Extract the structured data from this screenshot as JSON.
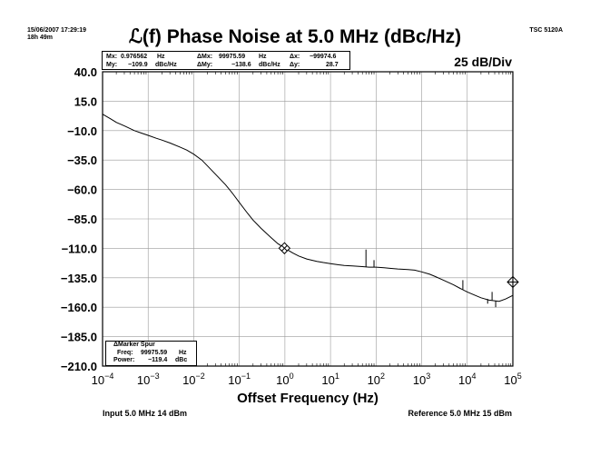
{
  "header": {
    "date": "15/06/2007 17:29:19",
    "elapsed": "18h 49m",
    "instrument": "TSC 5120A"
  },
  "readout": {
    "mx_label": "Mx:",
    "mx_value": "0.976562",
    "mx_unit": "Hz",
    "dmx_label": "ΔMx:",
    "dmx_value": "99975.59",
    "dmx_unit": "Hz",
    "dx_label": "Δx:",
    "dx_value": "−99974.6",
    "my_label": "My:",
    "my_value": "−109.9",
    "my_unit": "dBc/Hz",
    "dmy_label": "ΔMy:",
    "dmy_value": "−138.6",
    "dmy_unit": "dBc/Hz",
    "dy_label": "Δy:",
    "dy_value": "28.7"
  },
  "spur_box": {
    "heading": "ΔMarker Spur",
    "freq_label": "Freq:",
    "freq_value": "99975.59",
    "freq_unit": "Hz",
    "power_label": "Power:",
    "power_value": "−119.4",
    "power_unit": "dBc"
  },
  "footer": {
    "input": "Input 5.0 MHz 14 dBm",
    "reference": "Reference 5.0 MHz 15 dBm"
  },
  "chart_data": {
    "type": "line",
    "title": "ℒ(f) Phase Noise at 5.0 MHz (dBc/Hz)",
    "subtitle": "25 dB/Div",
    "xlabel": "Offset Frequency (Hz)",
    "ylabel": "",
    "x_scale": "log",
    "xlim": [
      0.0001,
      100000
    ],
    "ylim": [
      -210,
      40
    ],
    "grid": true,
    "x_ticks": [
      {
        "value": 0.0001,
        "base": "10",
        "exp": "−4"
      },
      {
        "value": 0.001,
        "base": "10",
        "exp": "−3"
      },
      {
        "value": 0.01,
        "base": "10",
        "exp": "−2"
      },
      {
        "value": 0.1,
        "base": "10",
        "exp": "−1"
      },
      {
        "value": 1,
        "base": "10",
        "exp": "0"
      },
      {
        "value": 10,
        "base": "10",
        "exp": "1"
      },
      {
        "value": 100,
        "base": "10",
        "exp": "2"
      },
      {
        "value": 1000,
        "base": "10",
        "exp": "3"
      },
      {
        "value": 10000,
        "base": "10",
        "exp": "4"
      },
      {
        "value": 100000,
        "base": "10",
        "exp": "5"
      }
    ],
    "y_ticks": [
      {
        "value": 40,
        "label": "40.0"
      },
      {
        "value": 15,
        "label": "15.0"
      },
      {
        "value": -10,
        "label": "−10.0"
      },
      {
        "value": -35,
        "label": "−35.0"
      },
      {
        "value": -60,
        "label": "−60.0"
      },
      {
        "value": -85,
        "label": "−85.0"
      },
      {
        "value": -110,
        "label": "−110.0"
      },
      {
        "value": -135,
        "label": "−135.0"
      },
      {
        "value": -160,
        "label": "−160.0"
      },
      {
        "value": -185,
        "label": "−185.0"
      },
      {
        "value": -210,
        "label": "−210.0"
      }
    ],
    "series": [
      {
        "x": [
          0.0001,
          0.00015,
          0.0002,
          0.0003,
          0.0005,
          0.0007,
          0.001,
          0.0015,
          0.002,
          0.003,
          0.005,
          0.007,
          0.01,
          0.015,
          0.02,
          0.03,
          0.05,
          0.07,
          0.1,
          0.15,
          0.2,
          0.3,
          0.5,
          0.7,
          1,
          1.5,
          2,
          3,
          5,
          7,
          10,
          15,
          20,
          30,
          50,
          70,
          100,
          150,
          200,
          300,
          500,
          700,
          1000,
          1500,
          2000,
          3000,
          5000,
          7000,
          10000,
          15000,
          20000,
          30000,
          50000,
          70000,
          100000
        ],
        "y": [
          4,
          0,
          -3,
          -6,
          -10,
          -12,
          -14,
          -16.5,
          -18,
          -20.5,
          -24,
          -26.5,
          -30,
          -35,
          -40,
          -47,
          -56,
          -63,
          -71,
          -80,
          -86,
          -93,
          -101,
          -106,
          -110,
          -114,
          -116.5,
          -119,
          -121,
          -122,
          -123,
          -124,
          -124.5,
          -125,
          -125.5,
          -126,
          -126,
          -126.5,
          -127,
          -127.5,
          -128,
          -128.5,
          -130,
          -132,
          -134,
          -137,
          -141,
          -144,
          -147,
          -150,
          -152,
          -154,
          -155,
          -153,
          -150
        ]
      }
    ],
    "spikes": [
      {
        "x": 60,
        "base": -125.8,
        "top": -111
      },
      {
        "x": 90,
        "base": -126,
        "top": -120
      },
      {
        "x": 8000,
        "base": -145,
        "top": -137
      },
      {
        "x": 28000,
        "base": -153,
        "top": -157
      },
      {
        "x": 35000,
        "base": -154,
        "top": -147
      },
      {
        "x": 42000,
        "base": -154.5,
        "top": -160
      }
    ],
    "markers": [
      {
        "x": 0.976562,
        "y": -109.9,
        "symbol": "diamond-x"
      },
      {
        "x": 100000,
        "y": -138.6,
        "symbol": "diamond-plus"
      }
    ]
  }
}
